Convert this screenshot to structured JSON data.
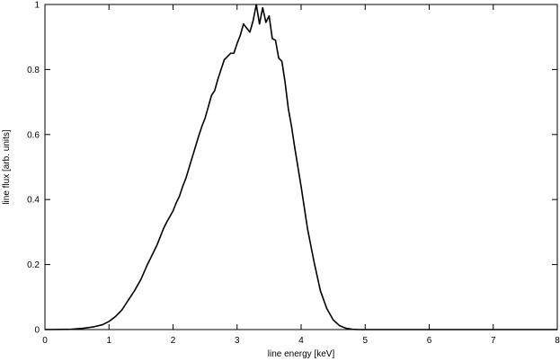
{
  "chart_data": {
    "type": "line",
    "title": "",
    "xlabel": "line energy [keV]",
    "ylabel": "line flux [arb. units]",
    "xlim": [
      0,
      8
    ],
    "ylim": [
      0,
      1
    ],
    "grid": false,
    "legend": "none",
    "x_ticks": [
      0,
      1,
      2,
      3,
      4,
      5,
      6,
      7,
      8
    ],
    "x_tick_labels": [
      "0",
      "1",
      "2",
      "3",
      "4",
      "5",
      "6",
      "7",
      "8"
    ],
    "y_ticks": [
      0,
      0.2,
      0.4,
      0.6,
      0.8,
      1
    ],
    "y_tick_labels": [
      "0",
      "0.2",
      "0.4",
      "0.6",
      "0.8",
      "1"
    ],
    "series": [
      {
        "color": "#000000",
        "x": [
          0,
          0.4,
          0.6,
          0.75,
          0.9,
          1.0,
          1.1,
          1.2,
          1.3,
          1.4,
          1.5,
          1.6,
          1.7,
          1.75,
          1.8,
          1.85,
          1.9,
          2.0,
          2.05,
          2.1,
          2.15,
          2.2,
          2.3,
          2.4,
          2.45,
          2.5,
          2.55,
          2.6,
          2.65,
          2.7,
          2.8,
          2.9,
          2.95,
          3.0,
          3.05,
          3.1,
          3.2,
          3.25,
          3.3,
          3.35,
          3.4,
          3.45,
          3.5,
          3.55,
          3.6,
          3.65,
          3.7,
          3.75,
          3.8,
          3.85,
          3.9,
          4.0,
          4.1,
          4.2,
          4.3,
          4.4,
          4.5,
          4.6,
          4.7,
          4.8,
          4.9,
          5.0,
          5.1,
          5.2,
          5.4,
          6.0,
          8.0
        ],
        "y": [
          0,
          0.001,
          0.004,
          0.008,
          0.015,
          0.025,
          0.04,
          0.06,
          0.09,
          0.12,
          0.155,
          0.2,
          0.24,
          0.26,
          0.285,
          0.31,
          0.33,
          0.365,
          0.39,
          0.41,
          0.44,
          0.465,
          0.53,
          0.595,
          0.625,
          0.65,
          0.685,
          0.72,
          0.735,
          0.77,
          0.83,
          0.85,
          0.85,
          0.88,
          0.905,
          0.94,
          0.915,
          0.95,
          1.0,
          0.94,
          0.99,
          0.945,
          0.965,
          0.895,
          0.89,
          0.835,
          0.825,
          0.76,
          0.68,
          0.625,
          0.56,
          0.44,
          0.31,
          0.21,
          0.12,
          0.065,
          0.03,
          0.012,
          0.004,
          0.001,
          0,
          0,
          0,
          0,
          0,
          0,
          0
        ]
      }
    ]
  }
}
